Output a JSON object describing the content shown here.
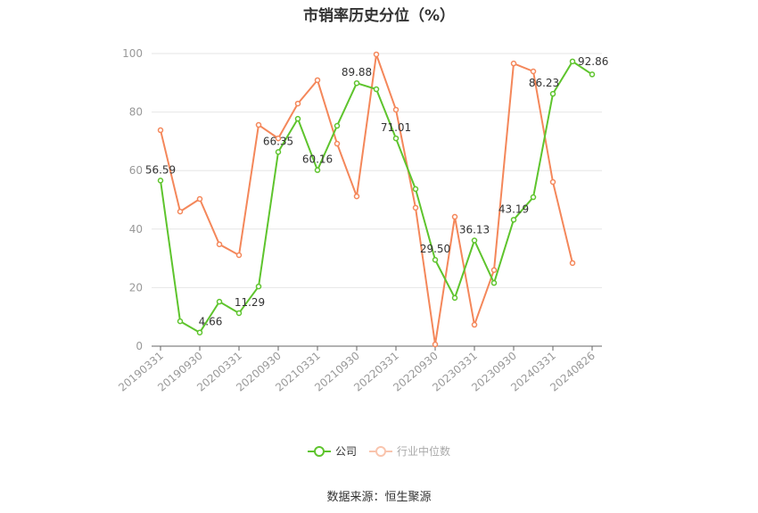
{
  "title": "市销率历史分位（%）",
  "legend": {
    "company_label": "公司",
    "industry_label": "行业中位数"
  },
  "source": "数据来源：恒生聚源",
  "colors": {
    "company": "#5ec42d",
    "industry": "#f4875a",
    "grid": "#e6e6e6",
    "axis": "#666666"
  },
  "chart_data": {
    "type": "line",
    "title": "市销率历史分位（%）",
    "xlabel": "",
    "ylabel": "",
    "ylim": [
      0,
      100
    ],
    "yticks": [
      0,
      20,
      40,
      60,
      80,
      100
    ],
    "grid": true,
    "legend_position": "bottom",
    "x_tick_labels": [
      "20190331",
      "20190930",
      "20200331",
      "20200930",
      "20210331",
      "20210930",
      "20220331",
      "20220930",
      "20230331",
      "20230930",
      "20240331",
      "20240826"
    ],
    "x_tick_indices": [
      0,
      2,
      4,
      6,
      8,
      10,
      12,
      14,
      16,
      18,
      20,
      22
    ],
    "n_points": 23,
    "series": [
      {
        "name": "公司",
        "values": [
          56.59,
          8.5,
          4.66,
          15.2,
          11.29,
          20.4,
          66.35,
          77.7,
          60.16,
          75.3,
          89.88,
          87.8,
          71.01,
          53.7,
          29.5,
          16.5,
          36.13,
          21.6,
          43.19,
          50.9,
          86.23,
          97.3,
          92.86
        ],
        "data_labels": {
          "0": "56.59",
          "2": "4.66",
          "4": "11.29",
          "6": "66.35",
          "8": "60.16",
          "10": "89.88",
          "12": "71.01",
          "14": "29.50",
          "16": "36.13",
          "18": "43.19",
          "20": "86.23",
          "22": "92.86"
        }
      },
      {
        "name": "行业中位数",
        "values": [
          73.8,
          46.0,
          50.3,
          34.8,
          31.1,
          75.6,
          71.0,
          82.9,
          90.9,
          69.2,
          51.2,
          99.7,
          80.8,
          47.3,
          0.6,
          44.2,
          7.3,
          26.0,
          96.6,
          93.9,
          56.1,
          28.4,
          null
        ]
      }
    ]
  }
}
